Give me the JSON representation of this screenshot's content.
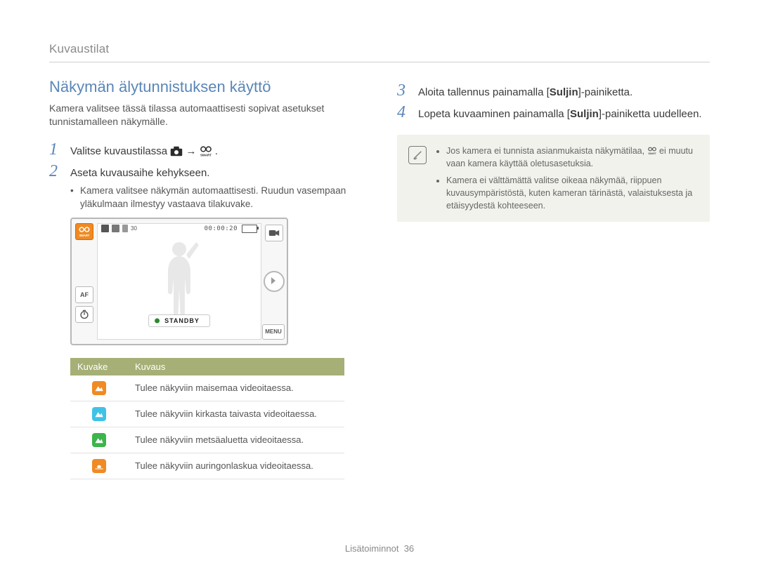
{
  "breadcrumb": "Kuvaustilat",
  "section_title": "Näkymän älytunnistuksen käyttö",
  "lead": "Kamera valitsee tässä tilassa automaattisesti sopivat asetukset tunnistamalleen näkymälle.",
  "left_steps": {
    "s1": {
      "num": "1",
      "text_a": "Valitse kuvaustilassa ",
      "text_b": " → ",
      "text_c": "."
    },
    "s2": {
      "num": "2",
      "text": "Aseta kuvausaihe kehykseen.",
      "bullet": "Kamera valitsee näkymän automaattisesti. Ruudun vasempaan yläkulmaan ilmestyy vastaava tilakuvake."
    }
  },
  "right_steps": {
    "s3": {
      "num": "3",
      "text_a": "Aloita tallennus painamalla [",
      "bold": "Suljin",
      "text_b": "]-painiketta."
    },
    "s4": {
      "num": "4",
      "text_a": "Lopeta kuvaaminen painamalla [",
      "bold": "Suljin",
      "text_b": "]-painiketta uudelleen."
    }
  },
  "note": {
    "b1_a": "Jos kamera ei tunnista asianmukaista näkymätilaa, ",
    "b1_b": " ei muutu vaan kamera käyttää oletusasetuksia.",
    "b2": "Kamera ei välttämättä valitse oikeaa näkymää, riippuen kuvausympäristöstä, kuten kameran tärinästä, valaistuksesta ja etäisyydestä kohteeseen."
  },
  "lcd": {
    "time": "00:00:20",
    "standby": "STANDBY",
    "menu": "MENU",
    "smart_label": "SMART",
    "af_label": "AF"
  },
  "table": {
    "header_icon": "Kuvake",
    "header_desc": "Kuvaus",
    "rows": [
      {
        "bg": "#f08a24",
        "shape": "mountain",
        "shape_fill": "#ffffff",
        "desc": "Tulee näkyviin maisemaa videoitaessa."
      },
      {
        "bg": "#3fc2e8",
        "shape": "mountain",
        "shape_fill": "#ffffff",
        "desc": "Tulee näkyviin kirkasta taivasta videoitaessa."
      },
      {
        "bg": "#3cb54a",
        "shape": "mountain",
        "shape_fill": "#ffffff",
        "desc": "Tulee näkyviin metsäaluetta videoitaessa."
      },
      {
        "bg": "#f08a24",
        "shape": "sunset",
        "shape_fill": "#ffffff",
        "desc": "Tulee näkyviin auringonlaskua videoitaessa."
      }
    ]
  },
  "icons": {
    "camera_alt": "camera-icon",
    "smart_alt": "smart-icon",
    "video_alt": "video-icon"
  },
  "footer": {
    "label": "Lisätoiminnot",
    "page": "36"
  },
  "colors": {
    "accent_blue": "#5a86b7",
    "table_header": "#a6af76",
    "note_bg": "#f1f2ec",
    "orange": "#f08a24",
    "sky": "#3fc2e8",
    "green": "#3cb54a",
    "rule": "#cfcfcf"
  }
}
